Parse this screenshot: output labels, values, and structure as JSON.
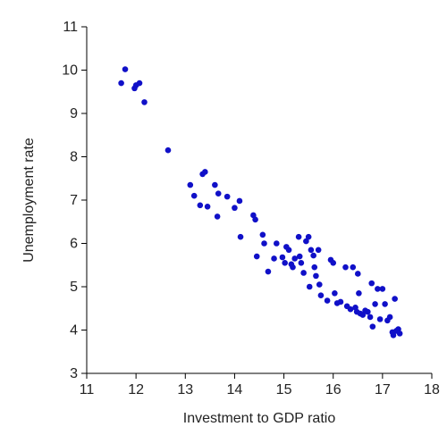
{
  "chart_data": {
    "type": "scatter",
    "title": "",
    "xlabel": "Investment to GDP ratio",
    "ylabel": "Unemployment rate",
    "xlim": [
      11,
      18
    ],
    "ylim": [
      3,
      11
    ],
    "x_ticks": [
      "11",
      "12",
      "13",
      "14",
      "15",
      "16",
      "17",
      "18"
    ],
    "y_ticks": [
      "3",
      "4",
      "5",
      "6",
      "7",
      "8",
      "9",
      "10",
      "11"
    ],
    "grid": false,
    "legend": "none",
    "marker_color": "#1010c8",
    "series": [
      {
        "points": [
          [
            11.7,
            9.7
          ],
          [
            11.78,
            10.02
          ],
          [
            11.97,
            9.58
          ],
          [
            12.0,
            9.65
          ],
          [
            12.07,
            9.7
          ],
          [
            12.17,
            9.26
          ],
          [
            12.65,
            8.15
          ],
          [
            13.1,
            7.35
          ],
          [
            13.18,
            7.1
          ],
          [
            13.3,
            6.88
          ],
          [
            13.35,
            7.6
          ],
          [
            13.4,
            7.65
          ],
          [
            13.45,
            6.85
          ],
          [
            13.6,
            7.35
          ],
          [
            13.65,
            6.62
          ],
          [
            13.67,
            7.15
          ],
          [
            13.85,
            7.08
          ],
          [
            14.0,
            6.82
          ],
          [
            14.1,
            6.98
          ],
          [
            14.12,
            6.15
          ],
          [
            14.38,
            6.65
          ],
          [
            14.42,
            6.55
          ],
          [
            14.45,
            5.7
          ],
          [
            14.57,
            6.2
          ],
          [
            14.6,
            6.0
          ],
          [
            14.68,
            5.35
          ],
          [
            14.8,
            5.65
          ],
          [
            14.85,
            6.0
          ],
          [
            14.97,
            5.68
          ],
          [
            15.02,
            5.55
          ],
          [
            15.05,
            5.92
          ],
          [
            15.1,
            5.85
          ],
          [
            15.15,
            5.52
          ],
          [
            15.18,
            5.45
          ],
          [
            15.22,
            5.65
          ],
          [
            15.3,
            6.15
          ],
          [
            15.32,
            5.7
          ],
          [
            15.35,
            5.55
          ],
          [
            15.4,
            5.32
          ],
          [
            15.45,
            6.05
          ],
          [
            15.5,
            6.15
          ],
          [
            15.52,
            5.0
          ],
          [
            15.55,
            5.85
          ],
          [
            15.6,
            5.72
          ],
          [
            15.62,
            5.45
          ],
          [
            15.65,
            5.25
          ],
          [
            15.7,
            5.85
          ],
          [
            15.72,
            5.05
          ],
          [
            15.75,
            4.8
          ],
          [
            15.88,
            4.68
          ],
          [
            15.95,
            5.62
          ],
          [
            16.0,
            5.55
          ],
          [
            16.03,
            4.85
          ],
          [
            16.08,
            4.62
          ],
          [
            16.15,
            4.65
          ],
          [
            16.25,
            5.45
          ],
          [
            16.28,
            4.55
          ],
          [
            16.35,
            4.48
          ],
          [
            16.4,
            5.45
          ],
          [
            16.45,
            4.52
          ],
          [
            16.48,
            4.42
          ],
          [
            16.5,
            5.3
          ],
          [
            16.52,
            4.85
          ],
          [
            16.55,
            4.38
          ],
          [
            16.6,
            4.35
          ],
          [
            16.65,
            4.45
          ],
          [
            16.7,
            4.42
          ],
          [
            16.75,
            4.3
          ],
          [
            16.78,
            5.08
          ],
          [
            16.8,
            4.08
          ],
          [
            16.85,
            4.6
          ],
          [
            16.9,
            4.95
          ],
          [
            16.95,
            4.25
          ],
          [
            17.0,
            4.95
          ],
          [
            17.05,
            4.6
          ],
          [
            17.1,
            4.22
          ],
          [
            17.15,
            4.3
          ],
          [
            17.2,
            3.95
          ],
          [
            17.22,
            3.88
          ],
          [
            17.25,
            4.72
          ],
          [
            17.28,
            3.98
          ],
          [
            17.32,
            4.02
          ],
          [
            17.35,
            3.92
          ]
        ]
      }
    ]
  }
}
